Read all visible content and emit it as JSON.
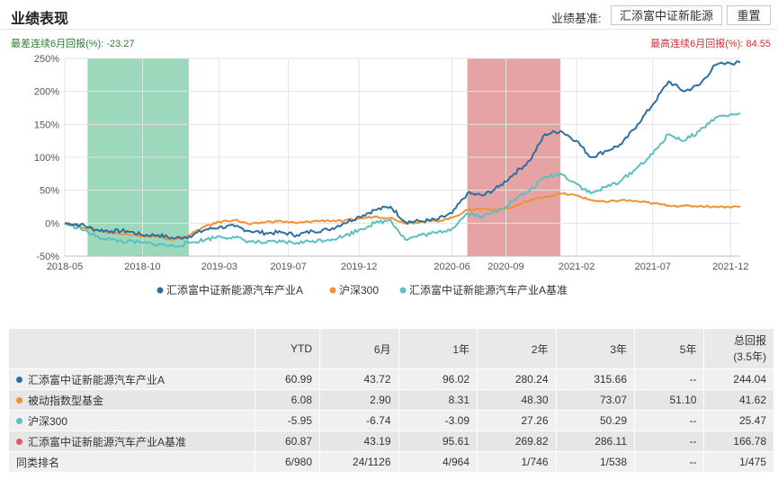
{
  "header": {
    "title": "业绩表现",
    "benchmark_label": "业绩基准:",
    "benchmark_button": "汇添富中证新能源",
    "reset_button": "重置"
  },
  "notes": {
    "min_drawdown": "最差连续6月回报(%): -23.27",
    "max_return": "最高连续6月回报(%): 84.55"
  },
  "colors": {
    "fund": "#2c6fa0",
    "hs300": "#f39033",
    "benchmark": "#5cc0c0",
    "green_band": "#89d1b0",
    "red_band": "#de8c8c",
    "fund_dot": "#2c6fa0",
    "passive_dot": "#f39033",
    "hs300_dot": "#5cc0c0",
    "bench_dot": "#e05a6a"
  },
  "chart_data": {
    "type": "line",
    "x_range": [
      "2018-05-01",
      "2021-12-20"
    ],
    "ylim": [
      -50,
      250
    ],
    "yticks": [
      250,
      200,
      150,
      100,
      50,
      0,
      -50
    ],
    "ytick_labels": [
      "250%",
      "200%",
      "150%",
      "100%",
      "50%",
      "0%",
      "-50%"
    ],
    "xticks": [
      "2018-05-01",
      "2018-10-01",
      "2019-03-01",
      "2019-07-15",
      "2019-12-01",
      "2020-06-01",
      "2020-09-15",
      "2021-02-01",
      "2021-07-01",
      "2021-12-01"
    ],
    "xtick_labels": [
      "2018-05",
      "2018-10",
      "2019-03",
      "2019-07",
      "2019-12",
      "2020-06",
      "2020-09",
      "2021-02",
      "2021-07",
      "2021-12"
    ],
    "grid": true,
    "legend_position": "bottom",
    "bands": [
      {
        "from": "2018-06-15",
        "to": "2018-12-31",
        "kind": "worst"
      },
      {
        "from": "2020-07-01",
        "to": "2020-12-31",
        "kind": "best"
      }
    ],
    "series": [
      {
        "name": "汇添富中证新能源汽车产业A",
        "points": [
          [
            "2018-05-01",
            0
          ],
          [
            "2018-06-01",
            -2
          ],
          [
            "2018-07-01",
            -10
          ],
          [
            "2018-08-01",
            -12
          ],
          [
            "2018-09-01",
            -12
          ],
          [
            "2018-10-01",
            -18
          ],
          [
            "2018-11-01",
            -18
          ],
          [
            "2018-12-01",
            -23
          ],
          [
            "2019-01-01",
            -20
          ],
          [
            "2019-02-01",
            -10
          ],
          [
            "2019-03-01",
            -6
          ],
          [
            "2019-04-01",
            -5
          ],
          [
            "2019-05-01",
            -12
          ],
          [
            "2019-06-01",
            -15
          ],
          [
            "2019-07-01",
            -14
          ],
          [
            "2019-08-01",
            -18
          ],
          [
            "2019-09-01",
            -12
          ],
          [
            "2019-10-01",
            -10
          ],
          [
            "2019-11-01",
            0
          ],
          [
            "2019-12-01",
            10
          ],
          [
            "2020-01-01",
            20
          ],
          [
            "2020-02-01",
            25
          ],
          [
            "2020-03-01",
            2
          ],
          [
            "2020-04-01",
            3
          ],
          [
            "2020-05-01",
            5
          ],
          [
            "2020-06-01",
            15
          ],
          [
            "2020-07-01",
            45
          ],
          [
            "2020-08-01",
            42
          ],
          [
            "2020-09-01",
            55
          ],
          [
            "2020-10-01",
            75
          ],
          [
            "2020-11-01",
            95
          ],
          [
            "2020-12-01",
            135
          ],
          [
            "2021-01-01",
            140
          ],
          [
            "2021-02-01",
            125
          ],
          [
            "2021-03-01",
            100
          ],
          [
            "2021-04-01",
            110
          ],
          [
            "2021-05-01",
            120
          ],
          [
            "2021-06-01",
            150
          ],
          [
            "2021-07-01",
            180
          ],
          [
            "2021-08-01",
            215
          ],
          [
            "2021-09-01",
            200
          ],
          [
            "2021-10-01",
            210
          ],
          [
            "2021-11-01",
            240
          ],
          [
            "2021-12-20",
            244
          ]
        ]
      },
      {
        "name": "沪深300",
        "points": [
          [
            "2018-05-01",
            0
          ],
          [
            "2018-06-01",
            -5
          ],
          [
            "2018-07-01",
            -10
          ],
          [
            "2018-08-01",
            -15
          ],
          [
            "2018-09-01",
            -16
          ],
          [
            "2018-10-01",
            -20
          ],
          [
            "2018-11-01",
            -21
          ],
          [
            "2018-12-01",
            -25
          ],
          [
            "2019-01-01",
            -18
          ],
          [
            "2019-02-01",
            -5
          ],
          [
            "2019-03-01",
            2
          ],
          [
            "2019-04-01",
            5
          ],
          [
            "2019-05-01",
            -2
          ],
          [
            "2019-06-01",
            2
          ],
          [
            "2019-07-01",
            3
          ],
          [
            "2019-08-01",
            0
          ],
          [
            "2019-09-01",
            3
          ],
          [
            "2019-10-01",
            4
          ],
          [
            "2019-11-01",
            3
          ],
          [
            "2019-12-01",
            7
          ],
          [
            "2020-01-01",
            10
          ],
          [
            "2020-02-01",
            8
          ],
          [
            "2020-03-01",
            0
          ],
          [
            "2020-04-01",
            2
          ],
          [
            "2020-05-01",
            3
          ],
          [
            "2020-06-01",
            8
          ],
          [
            "2020-07-01",
            20
          ],
          [
            "2020-08-01",
            22
          ],
          [
            "2020-09-01",
            20
          ],
          [
            "2020-10-01",
            25
          ],
          [
            "2020-11-01",
            35
          ],
          [
            "2020-12-01",
            40
          ],
          [
            "2021-01-01",
            45
          ],
          [
            "2021-02-01",
            42
          ],
          [
            "2021-03-01",
            35
          ],
          [
            "2021-04-01",
            32
          ],
          [
            "2021-05-01",
            35
          ],
          [
            "2021-06-01",
            33
          ],
          [
            "2021-07-01",
            30
          ],
          [
            "2021-08-01",
            27
          ],
          [
            "2021-09-01",
            26
          ],
          [
            "2021-10-01",
            26
          ],
          [
            "2021-11-01",
            25
          ],
          [
            "2021-12-20",
            25
          ]
        ]
      },
      {
        "name": "汇添富中证新能源汽车产业A基准",
        "points": [
          [
            "2018-05-01",
            0
          ],
          [
            "2018-06-01",
            -8
          ],
          [
            "2018-07-01",
            -20
          ],
          [
            "2018-08-01",
            -25
          ],
          [
            "2018-09-01",
            -28
          ],
          [
            "2018-10-01",
            -30
          ],
          [
            "2018-11-01",
            -32
          ],
          [
            "2018-12-01",
            -35
          ],
          [
            "2019-01-01",
            -30
          ],
          [
            "2019-02-01",
            -25
          ],
          [
            "2019-03-01",
            -20
          ],
          [
            "2019-04-01",
            -22
          ],
          [
            "2019-05-01",
            -28
          ],
          [
            "2019-06-01",
            -30
          ],
          [
            "2019-07-01",
            -28
          ],
          [
            "2019-08-01",
            -30
          ],
          [
            "2019-09-01",
            -27
          ],
          [
            "2019-10-01",
            -25
          ],
          [
            "2019-11-01",
            -20
          ],
          [
            "2019-12-01",
            -10
          ],
          [
            "2020-01-01",
            0
          ],
          [
            "2020-02-01",
            5
          ],
          [
            "2020-03-01",
            -25
          ],
          [
            "2020-04-01",
            -18
          ],
          [
            "2020-05-01",
            -15
          ],
          [
            "2020-06-01",
            -8
          ],
          [
            "2020-07-01",
            15
          ],
          [
            "2020-08-01",
            10
          ],
          [
            "2020-09-01",
            20
          ],
          [
            "2020-10-01",
            35
          ],
          [
            "2020-11-01",
            50
          ],
          [
            "2020-12-01",
            70
          ],
          [
            "2021-01-01",
            75
          ],
          [
            "2021-02-01",
            60
          ],
          [
            "2021-03-01",
            45
          ],
          [
            "2021-04-01",
            55
          ],
          [
            "2021-05-01",
            65
          ],
          [
            "2021-06-01",
            85
          ],
          [
            "2021-07-01",
            105
          ],
          [
            "2021-08-01",
            135
          ],
          [
            "2021-09-01",
            125
          ],
          [
            "2021-10-01",
            140
          ],
          [
            "2021-11-01",
            160
          ],
          [
            "2021-12-20",
            167
          ]
        ]
      }
    ]
  },
  "table": {
    "headers": [
      "",
      "YTD",
      "6月",
      "1年",
      "2年",
      "3年",
      "5年",
      "总回报\n(3.5年)"
    ],
    "header_total_line1": "总回报",
    "header_total_line2": "(3.5年)",
    "rows": [
      {
        "name": "汇添富中证新能源汽车产业A",
        "dot": "fund_dot",
        "values": [
          "60.99",
          "43.72",
          "96.02",
          "280.24",
          "315.66",
          "--",
          "244.04"
        ]
      },
      {
        "name": "被动指数型基金",
        "dot": "passive_dot",
        "values": [
          "6.08",
          "2.90",
          "8.31",
          "48.30",
          "73.07",
          "51.10",
          "41.62"
        ]
      },
      {
        "name": "沪深300",
        "dot": "hs300_dot",
        "values": [
          "-5.95",
          "-6.74",
          "-3.09",
          "27.26",
          "50.29",
          "--",
          "25.47"
        ]
      },
      {
        "name": "汇添富中证新能源汽车产业A基准",
        "dot": "bench_dot",
        "values": [
          "60.87",
          "43.19",
          "95.61",
          "269.82",
          "286.11",
          "--",
          "166.78"
        ]
      },
      {
        "name": "同类排名",
        "dot": "",
        "values": [
          "6/980",
          "24/1126",
          "4/964",
          "1/746",
          "1/538",
          "--",
          "1/475"
        ]
      }
    ]
  }
}
